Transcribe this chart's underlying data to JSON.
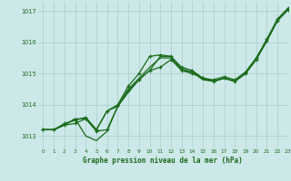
{
  "title": "Graphe pression niveau de la mer (hPa)",
  "background_color": "#cce8e8",
  "grid_color": "#aacccc",
  "line_color": "#1a6b1a",
  "xlim": [
    -0.5,
    23
  ],
  "ylim": [
    1012.6,
    1017.3
  ],
  "xticks": [
    0,
    1,
    2,
    3,
    4,
    5,
    6,
    7,
    8,
    9,
    10,
    11,
    12,
    13,
    14,
    15,
    16,
    17,
    18,
    19,
    20,
    21,
    22,
    23
  ],
  "ytick_vals": [
    1013,
    1014,
    1015,
    1016,
    1017
  ],
  "series": [
    {
      "x": [
        0,
        1,
        2,
        3,
        4,
        5,
        6,
        7,
        8,
        9,
        10,
        11,
        12,
        13,
        14,
        15,
        16,
        17,
        18,
        19,
        20,
        21,
        22,
        23
      ],
      "y": [
        1013.2,
        1013.2,
        1013.4,
        1013.5,
        1013.6,
        1013.2,
        1013.8,
        1014.0,
        1014.6,
        1015.0,
        1015.55,
        1015.6,
        1015.55,
        1015.2,
        1015.1,
        1014.85,
        1014.8,
        1014.9,
        1014.8,
        1015.05,
        1015.5,
        1016.1,
        1016.75,
        1017.1
      ],
      "marker": true,
      "linewidth": 0.9
    },
    {
      "x": [
        0,
        1,
        2,
        3,
        4,
        5,
        6,
        7,
        8,
        9,
        10,
        11,
        12,
        13,
        14,
        15,
        16,
        17,
        18,
        19,
        20,
        21,
        22,
        23
      ],
      "y": [
        1013.2,
        1013.2,
        1013.35,
        1013.55,
        1013.0,
        1012.85,
        1013.15,
        1013.95,
        1014.4,
        1014.8,
        1015.1,
        1015.55,
        1015.55,
        1015.1,
        1015.05,
        1014.8,
        1014.75,
        1014.85,
        1014.75,
        1015.0,
        1015.45,
        1016.05,
        1016.7,
        1017.05
      ],
      "marker": false,
      "linewidth": 0.9
    },
    {
      "x": [
        0,
        1,
        2,
        3,
        4,
        5,
        6,
        7,
        8,
        9,
        10,
        11,
        12,
        13,
        14,
        15,
        16,
        17,
        18,
        19,
        20,
        21,
        22,
        23
      ],
      "y": [
        1013.2,
        1013.2,
        1013.35,
        1013.55,
        1013.55,
        1013.2,
        1013.8,
        1013.95,
        1014.5,
        1014.85,
        1015.2,
        1015.5,
        1015.5,
        1015.15,
        1015.05,
        1014.85,
        1014.75,
        1014.85,
        1014.75,
        1015.0,
        1015.45,
        1016.05,
        1016.7,
        1017.05
      ],
      "marker": false,
      "linewidth": 0.9
    },
    {
      "x": [
        0,
        1,
        2,
        3,
        4,
        5,
        6,
        7,
        8,
        9,
        10,
        11,
        12,
        13,
        14,
        15,
        16,
        17,
        18,
        19,
        20,
        21,
        22,
        23
      ],
      "y": [
        1013.2,
        1013.2,
        1013.35,
        1013.4,
        1013.55,
        1013.15,
        1013.2,
        1013.95,
        1014.45,
        1014.8,
        1015.1,
        1015.2,
        1015.45,
        1015.1,
        1015.0,
        1014.85,
        1014.75,
        1014.85,
        1014.75,
        1015.0,
        1015.45,
        1016.05,
        1016.7,
        1017.05
      ],
      "marker": true,
      "linewidth": 0.9
    }
  ],
  "figsize": [
    3.2,
    2.0
  ],
  "dpi": 100
}
